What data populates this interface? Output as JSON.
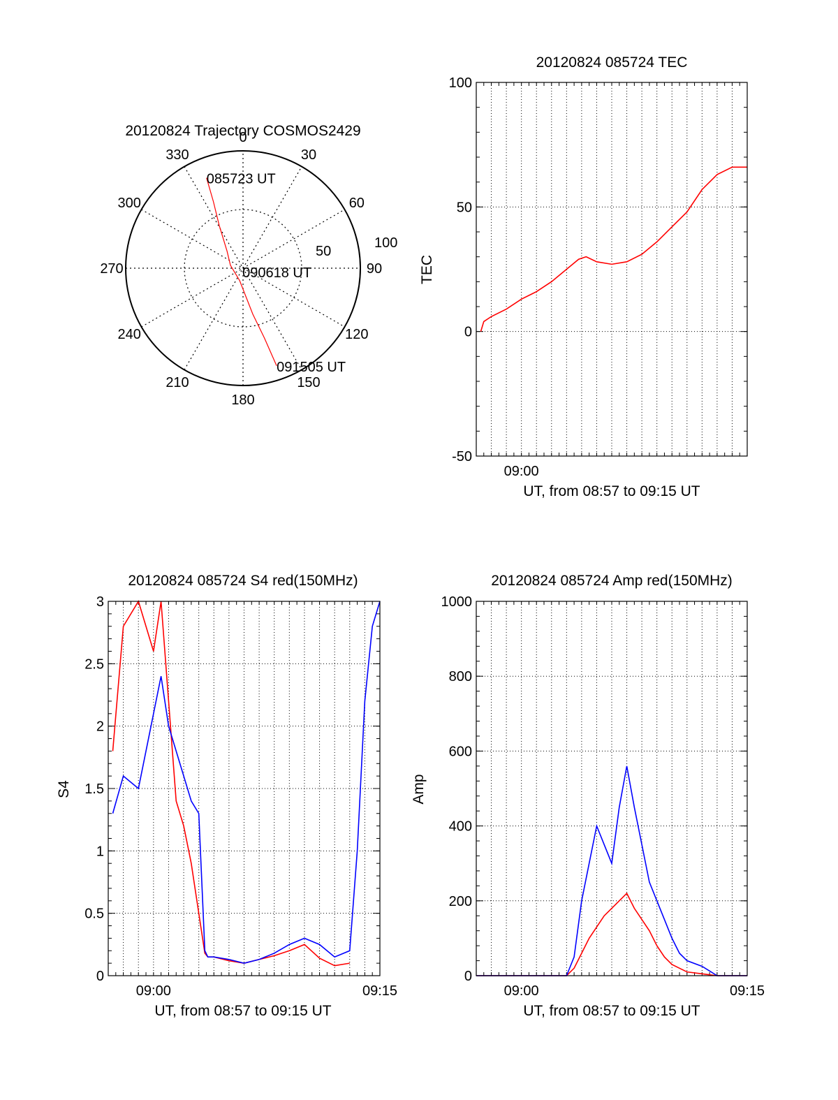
{
  "colors": {
    "red": "#ff0000",
    "blue": "#0000ff",
    "axis": "#000000"
  },
  "chart_data": [
    {
      "id": "trajectory",
      "type": "polar",
      "title": "20120824 Trajectory COSMOS2429",
      "azimuth_labels": [
        "0",
        "30",
        "60",
        "90",
        "120",
        "150",
        "180",
        "210",
        "240",
        "270",
        "300",
        "330"
      ],
      "radial_labels": [
        "50",
        "100"
      ],
      "radial_grid_max": 100,
      "series": [
        {
          "color": "#ff0000",
          "points": [
            {
              "az": 338,
              "r": 83
            },
            {
              "az": 336,
              "r": 62
            },
            {
              "az": 331,
              "r": 42
            },
            {
              "az": 317,
              "r": 20
            },
            {
              "az": 283,
              "r": 11
            },
            {
              "az": 195,
              "r": 11
            },
            {
              "az": 168,
              "r": 40
            },
            {
              "az": 163,
              "r": 62
            },
            {
              "az": 161,
              "r": 88
            }
          ]
        }
      ],
      "annotations": [
        {
          "text": "085723 UT",
          "az": 338,
          "r": 83
        },
        {
          "text": "090618 UT",
          "az": 190,
          "r": 3
        },
        {
          "text": "091505 UT",
          "az": 161,
          "r": 88
        }
      ]
    },
    {
      "id": "tec",
      "type": "line",
      "title": "20120824 085724 TEC",
      "xlabel": "UT, from 08:57 to 09:15 UT",
      "ylabel": "TEC",
      "x_unit": "minutes after 08:57",
      "xlim": [
        0,
        18
      ],
      "ylim": [
        -50,
        100
      ],
      "yticks": [
        -50,
        0,
        50,
        100
      ],
      "xtick_labels": [
        {
          "x": 3,
          "label": "09:00"
        }
      ],
      "grid": true,
      "series": [
        {
          "color": "#ff0000",
          "x": [
            0.3,
            0.5,
            1,
            2,
            3,
            4,
            5,
            6,
            6.8,
            7.3,
            8,
            9,
            10,
            11,
            12,
            13,
            14,
            15,
            16,
            17,
            18
          ],
          "y": [
            0,
            4,
            6,
            9,
            13,
            16,
            20,
            25,
            29,
            30,
            28,
            27,
            28,
            31,
            36,
            42,
            48,
            57,
            63,
            66,
            66
          ]
        }
      ]
    },
    {
      "id": "s4",
      "type": "line",
      "title": "20120824 085724 S4 red(150MHz)",
      "xlabel": "UT, from 08:57 to 09:15 UT",
      "ylabel": "S4",
      "x_unit": "minutes after 08:57",
      "xlim": [
        0,
        18
      ],
      "ylim": [
        0,
        3
      ],
      "yticks": [
        0,
        0.5,
        1,
        1.5,
        2,
        2.5,
        3
      ],
      "xtick_labels": [
        {
          "x": 3,
          "label": "09:00"
        },
        {
          "x": 18,
          "label": "09:15"
        }
      ],
      "grid": true,
      "series": [
        {
          "color": "#ff0000",
          "x": [
            0.3,
            1,
            2,
            3,
            3.5,
            4,
            4.5,
            5,
            5.5,
            6,
            6.4,
            6.6,
            7,
            8,
            9,
            10,
            11,
            12,
            13,
            14,
            15,
            16
          ],
          "y": [
            1.8,
            2.8,
            3,
            2.6,
            3,
            2.2,
            1.4,
            1.2,
            0.9,
            0.5,
            0.18,
            0.15,
            0.15,
            0.12,
            0.1,
            0.13,
            0.16,
            0.2,
            0.25,
            0.14,
            0.08,
            0.1
          ]
        },
        {
          "color": "#0000ff",
          "x": [
            0.3,
            1,
            2,
            3,
            3.5,
            4,
            4.5,
            5,
            5.5,
            6,
            6.4,
            6.6,
            7,
            8,
            9,
            10,
            11,
            12,
            13,
            14,
            15,
            16,
            16.5,
            17,
            17.5,
            18
          ],
          "y": [
            1.3,
            1.6,
            1.5,
            2.1,
            2.4,
            2.0,
            1.8,
            1.6,
            1.4,
            1.3,
            0.2,
            0.15,
            0.15,
            0.13,
            0.1,
            0.13,
            0.18,
            0.25,
            0.3,
            0.25,
            0.15,
            0.2,
            1.0,
            2.2,
            2.8,
            3
          ]
        }
      ]
    },
    {
      "id": "amp",
      "type": "line",
      "title": "20120824 085724 Amp red(150MHz)",
      "xlabel": "UT, from 08:57 to 09:15 UT",
      "ylabel": "Amp",
      "x_unit": "minutes after 08:57",
      "xlim": [
        0,
        18
      ],
      "ylim": [
        0,
        1000
      ],
      "yticks": [
        0,
        200,
        400,
        600,
        800,
        1000
      ],
      "xtick_labels": [
        {
          "x": 3,
          "label": "09:00"
        },
        {
          "x": 18,
          "label": "09:15"
        }
      ],
      "grid": true,
      "series": [
        {
          "color": "#ff0000",
          "x": [
            0,
            6,
            6.5,
            7,
            7.5,
            8,
            8.5,
            9,
            9.5,
            10,
            10.5,
            11,
            11.5,
            12,
            12.5,
            13,
            13.5,
            14,
            15,
            16,
            18
          ],
          "y": [
            0,
            0,
            20,
            60,
            100,
            130,
            160,
            180,
            200,
            220,
            180,
            150,
            120,
            80,
            50,
            30,
            20,
            10,
            5,
            0,
            0
          ]
        },
        {
          "color": "#0000ff",
          "x": [
            0,
            6,
            6.5,
            7,
            7.5,
            8,
            8.5,
            9,
            9.5,
            10,
            10.5,
            11,
            11.5,
            12,
            12.5,
            13,
            13.5,
            14,
            15,
            16,
            18
          ],
          "y": [
            0,
            0,
            50,
            200,
            300,
            400,
            350,
            300,
            450,
            560,
            450,
            350,
            250,
            200,
            150,
            100,
            60,
            40,
            25,
            0,
            0
          ]
        }
      ]
    }
  ]
}
